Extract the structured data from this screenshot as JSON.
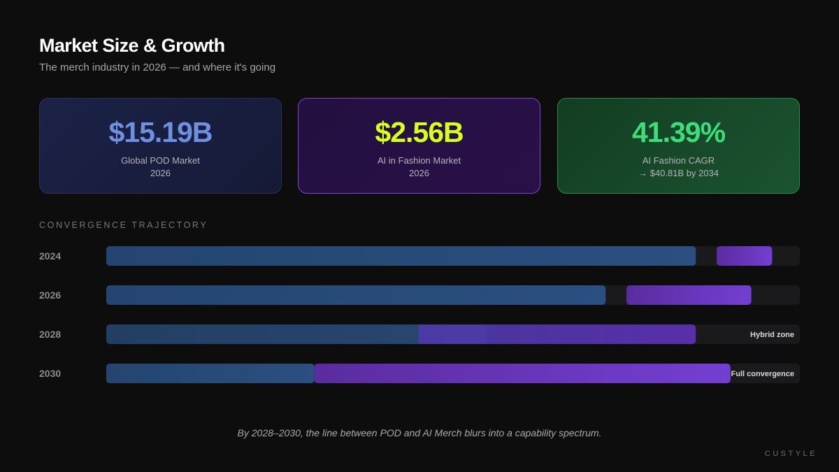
{
  "header": {
    "title": "Market Size & Growth",
    "subtitle": "The merch industry in 2026 — and where it's going"
  },
  "cards": [
    {
      "value": "$15.19B",
      "label": "Global POD Market",
      "sub": "2026",
      "value_color": "#6f8fe0"
    },
    {
      "value": "$2.56B",
      "label": "AI in Fashion Market",
      "sub": "2026",
      "value_color": "#d7ff1f"
    },
    {
      "value": "41.39%",
      "label": "AI Fashion CAGR",
      "sub": "→ $40.81B by 2034",
      "value_color": "#3fdc7a"
    }
  ],
  "section_label": "CONVERGENCE TRAJECTORY",
  "chart_data": {
    "type": "bar",
    "title": "CONVERGENCE TRAJECTORY",
    "orientation": "horizontal",
    "xlim": [
      0,
      100
    ],
    "categories": [
      "2024",
      "2026",
      "2028",
      "2030"
    ],
    "series": [
      {
        "color": "#2a4d7c",
        "segments": [
          [
            0,
            85
          ],
          [
            0,
            72
          ],
          [
            0,
            55
          ],
          [
            0,
            30
          ]
        ]
      },
      {
        "color": "#6a36c8",
        "segments": [
          [
            88,
            96
          ],
          [
            75,
            93
          ],
          [
            45,
            85
          ],
          [
            30,
            90
          ]
        ]
      }
    ],
    "annotations": [
      "",
      "",
      "Hybrid zone",
      "Full convergence"
    ]
  },
  "caption": "By 2028–2030, the line between POD and AI Merch blurs into a capability spectrum.",
  "brand": "CUSTYLE"
}
